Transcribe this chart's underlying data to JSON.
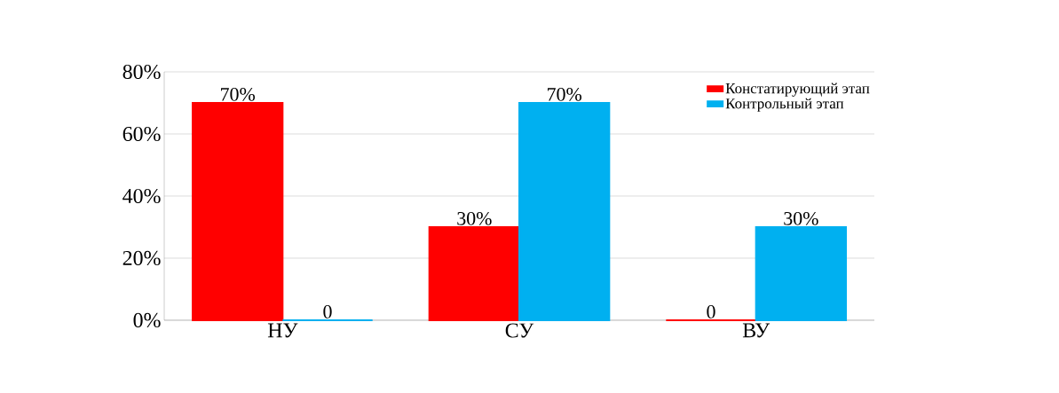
{
  "chart_data": {
    "type": "bar",
    "categories": [
      "НУ",
      "СУ",
      "ВУ"
    ],
    "series": [
      {
        "name": "Констатирующий этап",
        "color": "#ff0000",
        "values": [
          70,
          30,
          0
        ],
        "value_labels": [
          "70%",
          "30%",
          "0"
        ]
      },
      {
        "name": "Контрольный этап",
        "color": "#00b0f0",
        "values": [
          0,
          70,
          30
        ],
        "value_labels": [
          "0",
          "70%",
          "30%"
        ]
      }
    ],
    "ylim": [
      0,
      80
    ],
    "yticks": [
      {
        "value": 0,
        "label": "0%"
      },
      {
        "value": 20,
        "label": "20%"
      },
      {
        "value": 40,
        "label": "40%"
      },
      {
        "value": 60,
        "label": "60%"
      },
      {
        "value": 80,
        "label": "80%"
      }
    ],
    "grid": "y",
    "legend": "top right"
  }
}
